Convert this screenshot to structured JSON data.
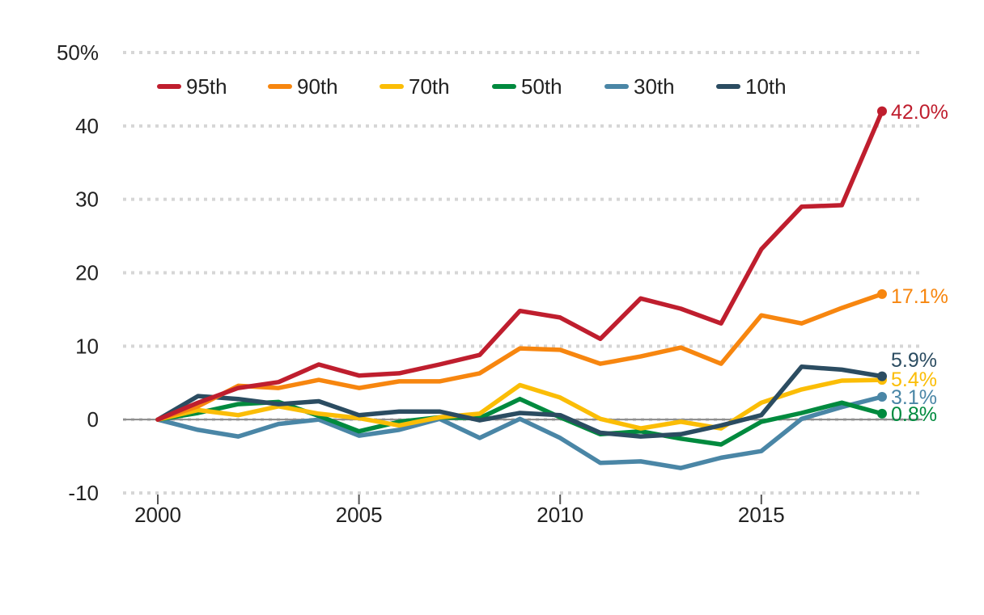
{
  "chart_data": {
    "type": "line",
    "title": "",
    "xlabel": "",
    "ylabel": "",
    "xlim": [
      2000,
      2018
    ],
    "ylim": [
      -10,
      50
    ],
    "grid": true,
    "legend_position": "top-left",
    "y_ticks": [
      {
        "value": 50,
        "label": "50%"
      },
      {
        "value": 40,
        "label": "40"
      },
      {
        "value": 30,
        "label": "30"
      },
      {
        "value": 20,
        "label": "20"
      },
      {
        "value": 10,
        "label": "10"
      },
      {
        "value": 0,
        "label": "0"
      },
      {
        "value": -10,
        "label": "-10"
      }
    ],
    "x_ticks": [
      {
        "value": 2000,
        "label": "2000"
      },
      {
        "value": 2005,
        "label": "2005"
      },
      {
        "value": 2010,
        "label": "2010"
      },
      {
        "value": 2015,
        "label": "2015"
      }
    ],
    "x": [
      2000,
      2001,
      2002,
      2003,
      2004,
      2005,
      2006,
      2007,
      2008,
      2009,
      2010,
      2011,
      2012,
      2013,
      2014,
      2015,
      2016,
      2017,
      2018
    ],
    "series": [
      {
        "name": "95th",
        "color": "#bf1e2e",
        "end_label": "42.0%",
        "values": [
          0,
          2.3,
          4.3,
          5.1,
          7.5,
          6.0,
          6.3,
          7.5,
          8.8,
          14.8,
          13.9,
          11.0,
          16.5,
          15.1,
          13.1,
          23.2,
          29.0,
          29.2,
          42.0
        ]
      },
      {
        "name": "90th",
        "color": "#f7860f",
        "end_label": "17.1%",
        "values": [
          0,
          1.8,
          4.6,
          4.3,
          5.4,
          4.3,
          5.2,
          5.2,
          6.3,
          9.7,
          9.5,
          7.6,
          8.6,
          9.8,
          7.6,
          14.2,
          13.1,
          15.2,
          17.1
        ]
      },
      {
        "name": "70th",
        "color": "#fbbd06",
        "end_label": "5.4%",
        "values": [
          0,
          1.3,
          0.6,
          1.8,
          0.8,
          0.2,
          -0.8,
          0.3,
          0.8,
          4.7,
          3.0,
          0.1,
          -1.2,
          -0.3,
          -1.2,
          2.3,
          4.1,
          5.3,
          5.4
        ]
      },
      {
        "name": "50th",
        "color": "#008a3e",
        "end_label": "0.8%",
        "values": [
          0,
          0.9,
          2.1,
          2.4,
          0.5,
          -1.6,
          -0.3,
          0.3,
          0.2,
          2.8,
          0.3,
          -2.0,
          -1.6,
          -2.6,
          -3.4,
          -0.3,
          0.9,
          2.3,
          0.8
        ]
      },
      {
        "name": "30th",
        "color": "#4a86a6",
        "end_label": "3.1%",
        "values": [
          0,
          -1.4,
          -2.3,
          -0.6,
          0.0,
          -2.2,
          -1.4,
          0.1,
          -2.5,
          0.1,
          -2.5,
          -5.9,
          -5.7,
          -6.6,
          -5.2,
          -4.3,
          0.1,
          1.7,
          3.1
        ]
      },
      {
        "name": "10th",
        "color": "#2b4c61",
        "end_label": "5.9%",
        "values": [
          0,
          3.2,
          2.8,
          2.1,
          2.5,
          0.6,
          1.1,
          1.1,
          -0.1,
          0.9,
          0.6,
          -1.8,
          -2.3,
          -2.0,
          -0.8,
          0.6,
          7.2,
          6.8,
          5.9
        ]
      }
    ]
  }
}
